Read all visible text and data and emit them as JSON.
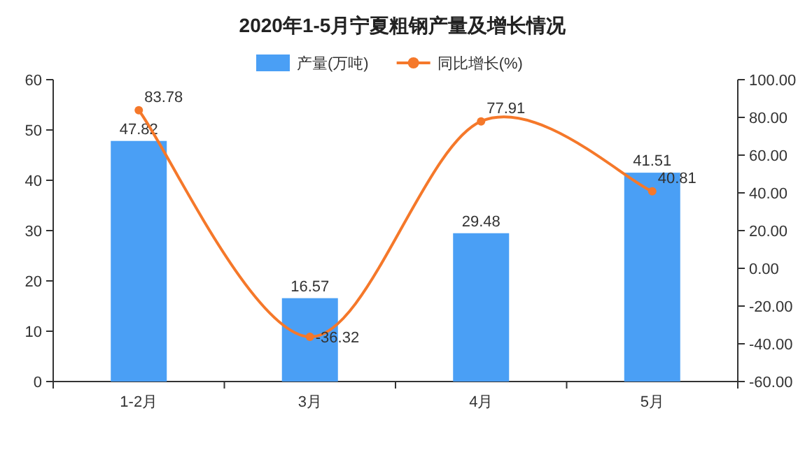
{
  "chart_data": {
    "type": "bar",
    "title": "2020年1-5月宁夏粗钢产量及增长情况",
    "categories": [
      "1-2月",
      "3月",
      "4月",
      "5月"
    ],
    "series": [
      {
        "name": "产量(万吨)",
        "color": "#4a9ff5",
        "values": [
          47.82,
          16.57,
          29.48,
          41.51
        ]
      },
      {
        "name": "同比增长(%)",
        "type": "line",
        "axis": "y2",
        "color": "#f5782a",
        "values": [
          83.78,
          -36.32,
          77.91,
          40.81
        ]
      }
    ],
    "ylim": [
      0,
      60
    ],
    "yticks": [
      0,
      10,
      20,
      30,
      40,
      50,
      60
    ],
    "y2lim": [
      -60,
      100
    ],
    "y2ticks": [
      {
        "value": -60,
        "label": "-60.00"
      },
      {
        "value": -40,
        "label": "-40.00"
      },
      {
        "value": -20,
        "label": "-20.00"
      },
      {
        "value": 0,
        "label": "0.00"
      },
      {
        "value": 20,
        "label": "20.00"
      },
      {
        "value": 40,
        "label": "40.00"
      },
      {
        "value": 60,
        "label": "60.00"
      },
      {
        "value": 80,
        "label": "80.00"
      },
      {
        "value": 100,
        "label": "100.00"
      }
    ],
    "marker": "circle",
    "data_labels": true,
    "legend": "top"
  }
}
